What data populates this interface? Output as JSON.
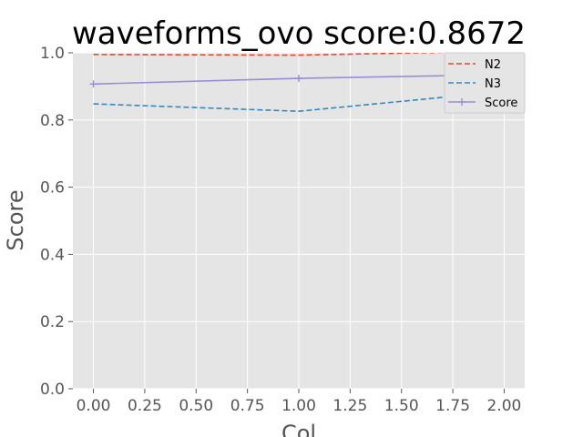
{
  "chart_data": {
    "type": "line",
    "title": "waveforms_ovo score:0.8672",
    "xlabel": "Col",
    "ylabel": "Score",
    "xlim": [
      -0.1,
      2.1
    ],
    "ylim": [
      0.0,
      1.0
    ],
    "xticks": [
      0.0,
      0.25,
      0.5,
      0.75,
      1.0,
      1.25,
      1.5,
      1.75,
      2.0
    ],
    "xtick_labels": [
      "0.00",
      "0.25",
      "0.50",
      "0.75",
      "1.00",
      "1.25",
      "1.50",
      "1.75",
      "2.00"
    ],
    "yticks": [
      0.0,
      0.2,
      0.4,
      0.6,
      0.8,
      1.0
    ],
    "ytick_labels": [
      "0.0",
      "0.2",
      "0.4",
      "0.6",
      "0.8",
      "1.0"
    ],
    "grid": true,
    "legend_position": "top-right",
    "series": [
      {
        "name": "N2",
        "x": [
          0,
          1,
          2
        ],
        "y": [
          0.995,
          0.993,
          1.005
        ],
        "color": "#E24A33",
        "style": "dashed",
        "marker": "none"
      },
      {
        "name": "N3",
        "x": [
          0,
          1,
          2
        ],
        "y": [
          0.848,
          0.826,
          0.885
        ],
        "color": "#348ABD",
        "style": "dashed",
        "marker": "none"
      },
      {
        "name": "Score",
        "x": [
          0,
          1,
          2
        ],
        "y": [
          0.907,
          0.924,
          0.935
        ],
        "color": "#988ED5",
        "style": "solid",
        "marker": "plus"
      }
    ]
  }
}
